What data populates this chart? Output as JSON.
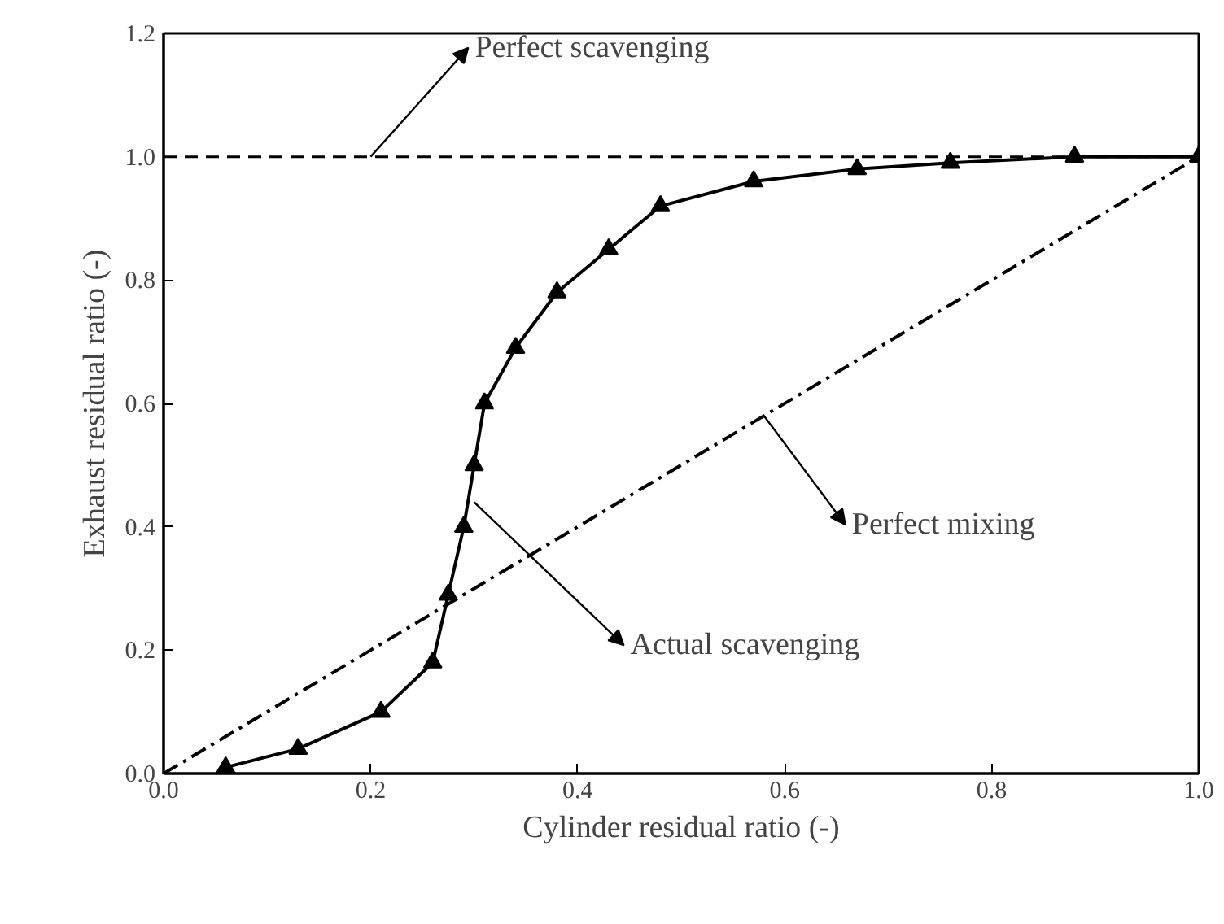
{
  "chart_data": {
    "type": "line",
    "xlabel": "Cylinder residual ratio (-)",
    "ylabel": "Exhaust residual ratio (-)",
    "xlim": [
      0,
      1
    ],
    "ylim": [
      0,
      1.2
    ],
    "xticks": [
      {
        "value": 0,
        "label": "0.0"
      },
      {
        "value": 0.2,
        "label": "0.2"
      },
      {
        "value": 0.4,
        "label": "0.4"
      },
      {
        "value": 0.6,
        "label": "0.6"
      },
      {
        "value": 0.8,
        "label": "0.8"
      },
      {
        "value": 1,
        "label": "1.0"
      }
    ],
    "yticks": [
      {
        "value": 0,
        "label": "0.0"
      },
      {
        "value": 0.2,
        "label": "0.2"
      },
      {
        "value": 0.4,
        "label": "0.4"
      },
      {
        "value": 0.6,
        "label": "0.6"
      },
      {
        "value": 0.8,
        "label": "0.8"
      },
      {
        "value": 1,
        "label": "1.0"
      },
      {
        "value": 1.2,
        "label": "1.2"
      }
    ],
    "grid": false,
    "series": [
      {
        "color": "#000000",
        "marker": "triangle",
        "line_style": "solid",
        "x": [
          0.06,
          0.13,
          0.21,
          0.26,
          0.275,
          0.29,
          0.3,
          0.31,
          0.34,
          0.38,
          0.43,
          0.48,
          0.57,
          0.67,
          0.76,
          0.88,
          1.0
        ],
        "values": [
          0.01,
          0.04,
          0.1,
          0.18,
          0.29,
          0.4,
          0.5,
          0.6,
          0.69,
          0.78,
          0.85,
          0.92,
          0.96,
          0.98,
          0.99,
          1.0,
          1.0
        ]
      },
      {
        "color": "#000000",
        "marker": "none",
        "line_style": "dashdot",
        "x": [
          0,
          1
        ],
        "values": [
          0,
          1
        ]
      }
    ],
    "ref_lines": [
      {
        "axis": "y",
        "value": 1.0,
        "color": "#000000",
        "line_style": "dashed"
      }
    ],
    "annotations": [
      {
        "text": "Perfect scavenging",
        "x": 0.2,
        "y": 1.0
      },
      {
        "text": "Perfect mixing",
        "x": 0.58,
        "y": 0.58
      },
      {
        "text": "Actual scavenging",
        "x": 0.3,
        "y": 0.44
      }
    ]
  }
}
